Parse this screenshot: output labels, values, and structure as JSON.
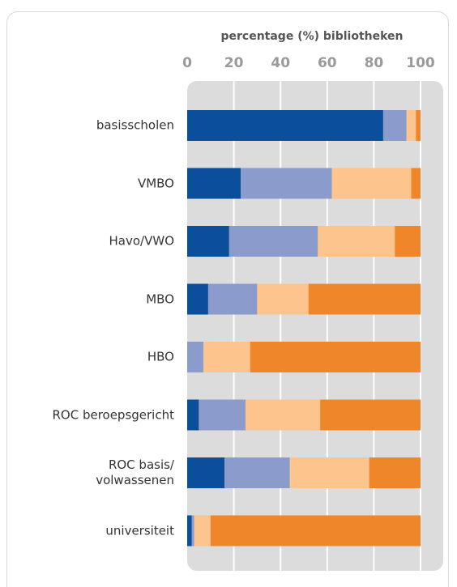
{
  "chart_data": {
    "type": "stacked-bar-horizontal",
    "title": "percentage (%) bibliotheken",
    "categories": [
      "basisscholen",
      "VMBO",
      "Havo/VWO",
      "MBO",
      "HBO",
      "ROC beroepsgericht",
      "ROC basis/\nvolwassenen",
      "universiteit"
    ],
    "series": [
      {
        "color": "#0b4f9c",
        "values": [
          84,
          23,
          18,
          9,
          0,
          5,
          16,
          2
        ]
      },
      {
        "color": "#8b9bcb",
        "values": [
          10,
          39,
          38,
          21,
          7,
          20,
          28,
          1
        ]
      },
      {
        "color": "#fdc58d",
        "values": [
          4,
          34,
          33,
          22,
          20,
          32,
          34,
          7
        ]
      },
      {
        "color": "#f0862a",
        "values": [
          2,
          4,
          11,
          48,
          73,
          43,
          22,
          90
        ]
      }
    ],
    "xlim": [
      0,
      100
    ],
    "xticks": [
      0,
      20,
      40,
      60,
      80,
      100
    ],
    "grid": true
  }
}
